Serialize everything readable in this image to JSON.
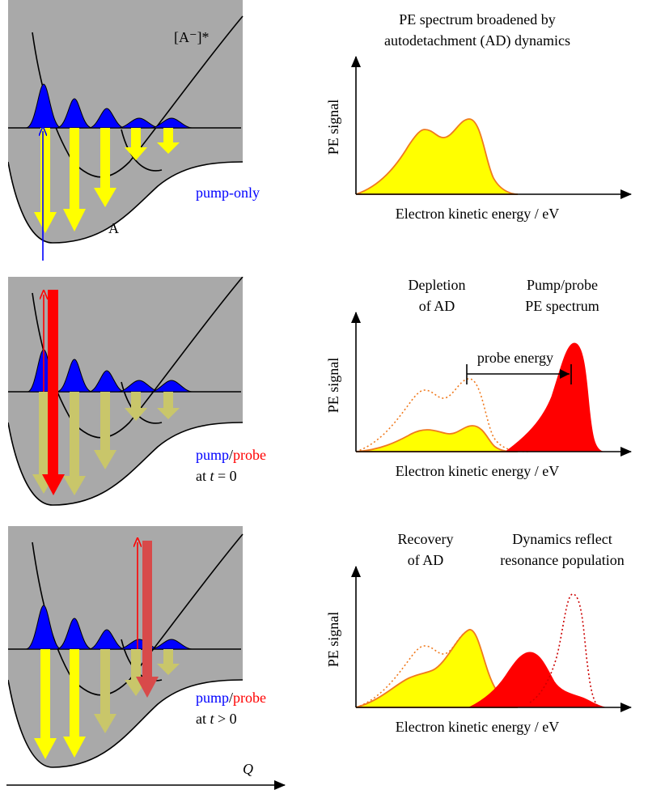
{
  "colors": {
    "panel_bg": "#a9a9a9",
    "wavepacket": "#0000ff",
    "ad_arrow": "#ffff00",
    "ad_arrow_faded": "#c9c66a",
    "probe": "#ff0000",
    "probe_faded": "#d84a4a",
    "spectrum_fill_ad": "#ffff00",
    "spectrum_edge": "#f07a1e",
    "spectrum_fill_probe": "#ff0000"
  },
  "panels": [
    {
      "label_anion": "[A⁻]*",
      "label_neutral": "A",
      "legend_pump": "pump-only",
      "legend_probe": "",
      "legend_time_prefix": "",
      "legend_time_var": "",
      "legend_time_rest": "",
      "spectrum": {
        "title_lines": [
          "PE spectrum broadened by",
          "autodetachment (AD) dynamics"
        ],
        "ylabel": "PE signal",
        "xlabel": "Electron kinetic energy / eV"
      }
    },
    {
      "legend_pump": "pump",
      "legend_slash": "/",
      "legend_probe": "probe",
      "legend_time_prefix": "at ",
      "legend_time_var": "t",
      "legend_time_rest": " = 0",
      "spectrum": {
        "annotation_left": [
          "Depletion",
          "of AD"
        ],
        "annotation_right": [
          "Pump/probe",
          "PE spectrum"
        ],
        "probe_energy_label": "probe energy",
        "ylabel": "PE signal",
        "xlabel": "Electron kinetic energy / eV"
      }
    },
    {
      "legend_pump": "pump",
      "legend_slash": "/",
      "legend_probe": "probe",
      "legend_time_prefix": "at ",
      "legend_time_var": "t",
      "legend_time_rest": " > 0",
      "spectrum": {
        "annotation_left": [
          "Recovery",
          "of AD"
        ],
        "annotation_right": [
          "Dynamics reflect",
          "resonance population"
        ],
        "ylabel": "PE signal",
        "xlabel": "Electron kinetic energy / eV"
      }
    }
  ],
  "coordinate_axis_label": "Q"
}
